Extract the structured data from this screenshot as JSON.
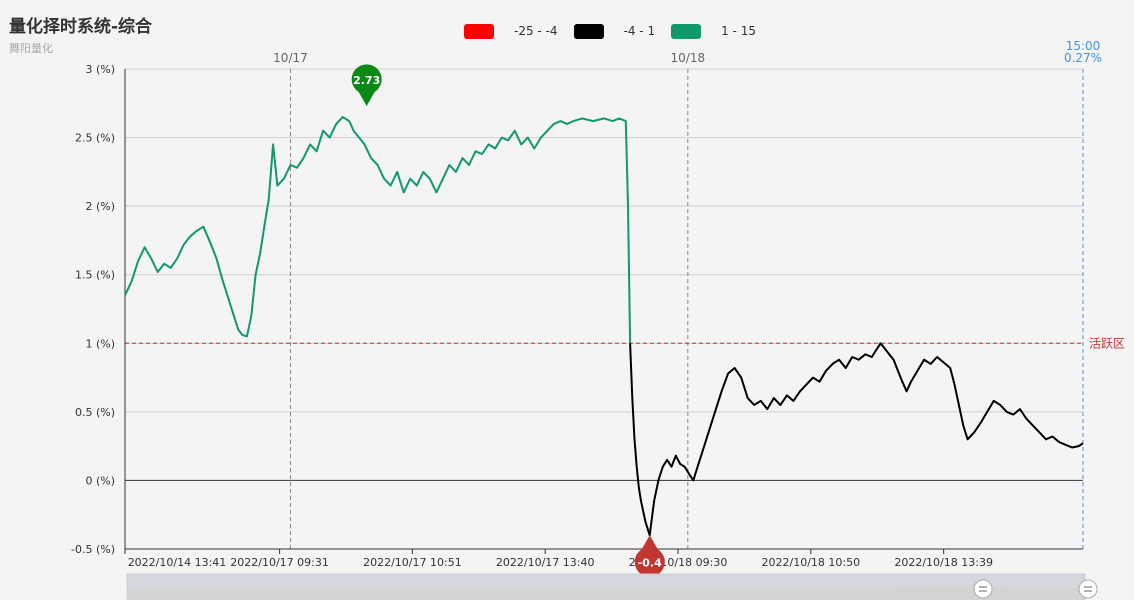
{
  "title": "量化择时系统-综合",
  "subtitle": "舞阳量化",
  "legend": [
    {
      "label": "-25 - -4",
      "color": "#ff0000"
    },
    {
      "label": "-4 - 1",
      "color": "#000000"
    },
    {
      "label": "1 - 15",
      "color": "#0f9a6a"
    }
  ],
  "chart_data": {
    "type": "line",
    "y_unit": "(%)",
    "ylim": [
      -0.5,
      3
    ],
    "y_ticks": [
      "-0.5 (%)",
      "0 (%)",
      "0.5 (%)",
      "1 (%)",
      "1.5 (%)",
      "2 (%)",
      "2.5 (%)",
      "3 (%)"
    ],
    "x_tick_labels": [
      "2022/10/14 13:41",
      "2022/10/17 09:31",
      "2022/10/17 10:51",
      "2022/10/17 13:40",
      "2022/10/18 09:30",
      "2022/10/18 10:50",
      "2022/10/18 13:39"
    ],
    "day_markers": [
      "10/17",
      "10/18"
    ],
    "end_marker": {
      "time": "15:00",
      "value_label": "0.27%"
    },
    "threshold": {
      "value": 1,
      "label": "活跃区"
    },
    "visual_map": [
      {
        "range": [
          -25,
          -4
        ],
        "color": "#ff0000"
      },
      {
        "range": [
          -4,
          1
        ],
        "color": "#000000"
      },
      {
        "range": [
          1,
          15
        ],
        "color": "#0f9a6a"
      }
    ],
    "max_point": {
      "label": "2.73",
      "value": 2.73
    },
    "min_point": {
      "label": "-0.4",
      "value": -0.4
    },
    "series": [
      {
        "points": [
          [
            0,
            1.35
          ],
          [
            6,
            1.45
          ],
          [
            12,
            1.6
          ],
          [
            18,
            1.7
          ],
          [
            24,
            1.62
          ],
          [
            30,
            1.52
          ],
          [
            36,
            1.58
          ],
          [
            42,
            1.55
          ],
          [
            48,
            1.62
          ],
          [
            54,
            1.72
          ],
          [
            60,
            1.78
          ],
          [
            66,
            1.82
          ],
          [
            72,
            1.85
          ],
          [
            78,
            1.74
          ],
          [
            84,
            1.62
          ],
          [
            90,
            1.45
          ],
          [
            96,
            1.3
          ],
          [
            100,
            1.2
          ],
          [
            104,
            1.1
          ],
          [
            108,
            1.06
          ],
          [
            112,
            1.05
          ],
          [
            116,
            1.2
          ],
          [
            120,
            1.5
          ],
          [
            124,
            1.65
          ],
          [
            128,
            1.85
          ],
          [
            132,
            2.05
          ],
          [
            136,
            2.45
          ],
          [
            140,
            2.15
          ],
          [
            146,
            2.2
          ],
          [
            152,
            2.3
          ],
          [
            158,
            2.28
          ],
          [
            164,
            2.35
          ],
          [
            170,
            2.45
          ],
          [
            176,
            2.4
          ],
          [
            182,
            2.55
          ],
          [
            188,
            2.5
          ],
          [
            194,
            2.6
          ],
          [
            200,
            2.65
          ],
          [
            206,
            2.62
          ],
          [
            210,
            2.55
          ],
          [
            215,
            2.5
          ],
          [
            220,
            2.45
          ],
          [
            226,
            2.35
          ],
          [
            232,
            2.3
          ],
          [
            238,
            2.2
          ],
          [
            244,
            2.15
          ],
          [
            250,
            2.25
          ],
          [
            256,
            2.1
          ],
          [
            262,
            2.2
          ],
          [
            268,
            2.15
          ],
          [
            274,
            2.25
          ],
          [
            280,
            2.2
          ],
          [
            286,
            2.1
          ],
          [
            292,
            2.2
          ],
          [
            298,
            2.3
          ],
          [
            304,
            2.25
          ],
          [
            310,
            2.35
          ],
          [
            316,
            2.3
          ],
          [
            322,
            2.4
          ],
          [
            328,
            2.38
          ],
          [
            334,
            2.45
          ],
          [
            340,
            2.42
          ],
          [
            346,
            2.5
          ],
          [
            352,
            2.48
          ],
          [
            358,
            2.55
          ],
          [
            364,
            2.45
          ],
          [
            370,
            2.5
          ],
          [
            376,
            2.42
          ],
          [
            382,
            2.5
          ],
          [
            388,
            2.55
          ],
          [
            394,
            2.6
          ],
          [
            400,
            2.62
          ],
          [
            406,
            2.6
          ],
          [
            412,
            2.62
          ],
          [
            420,
            2.64
          ],
          [
            430,
            2.62
          ],
          [
            440,
            2.64
          ],
          [
            448,
            2.62
          ],
          [
            454,
            2.64
          ],
          [
            460,
            2.62
          ],
          [
            462,
            2.0
          ],
          [
            464,
            1.0
          ]
        ]
      },
      {
        "points": [
          [
            464,
            1.0
          ],
          [
            466,
            0.6
          ],
          [
            468,
            0.3
          ],
          [
            470,
            0.1
          ],
          [
            472,
            -0.05
          ],
          [
            474,
            -0.15
          ],
          [
            478,
            -0.3
          ],
          [
            482,
            -0.4
          ],
          [
            486,
            -0.15
          ],
          [
            490,
            0.0
          ],
          [
            494,
            0.1
          ],
          [
            498,
            0.15
          ],
          [
            502,
            0.1
          ],
          [
            506,
            0.18
          ],
          [
            510,
            0.12
          ],
          [
            514,
            0.1
          ],
          [
            518,
            0.05
          ],
          [
            522,
            0.0
          ],
          [
            526,
            0.1
          ],
          [
            530,
            0.2
          ],
          [
            536,
            0.35
          ],
          [
            542,
            0.5
          ],
          [
            548,
            0.65
          ],
          [
            554,
            0.78
          ],
          [
            560,
            0.82
          ],
          [
            566,
            0.75
          ],
          [
            572,
            0.6
          ],
          [
            578,
            0.55
          ],
          [
            584,
            0.58
          ],
          [
            590,
            0.52
          ],
          [
            596,
            0.6
          ],
          [
            602,
            0.55
          ],
          [
            608,
            0.62
          ],
          [
            614,
            0.58
          ],
          [
            620,
            0.65
          ],
          [
            626,
            0.7
          ],
          [
            632,
            0.75
          ],
          [
            638,
            0.72
          ],
          [
            644,
            0.8
          ],
          [
            650,
            0.85
          ],
          [
            656,
            0.88
          ],
          [
            662,
            0.82
          ],
          [
            668,
            0.9
          ],
          [
            674,
            0.88
          ],
          [
            680,
            0.92
          ],
          [
            686,
            0.9
          ],
          [
            690,
            0.95
          ],
          [
            694,
            1.0
          ],
          [
            698,
            0.96
          ],
          [
            702,
            0.92
          ],
          [
            706,
            0.88
          ],
          [
            710,
            0.8
          ],
          [
            714,
            0.72
          ],
          [
            718,
            0.65
          ],
          [
            722,
            0.72
          ],
          [
            728,
            0.8
          ],
          [
            734,
            0.88
          ],
          [
            740,
            0.85
          ],
          [
            746,
            0.9
          ],
          [
            752,
            0.86
          ],
          [
            758,
            0.82
          ],
          [
            762,
            0.7
          ],
          [
            766,
            0.55
          ],
          [
            770,
            0.4
          ],
          [
            774,
            0.3
          ],
          [
            780,
            0.35
          ],
          [
            786,
            0.42
          ],
          [
            792,
            0.5
          ],
          [
            798,
            0.58
          ],
          [
            804,
            0.55
          ],
          [
            810,
            0.5
          ],
          [
            816,
            0.48
          ],
          [
            822,
            0.52
          ],
          [
            828,
            0.45
          ],
          [
            834,
            0.4
          ],
          [
            840,
            0.35
          ],
          [
            846,
            0.3
          ],
          [
            852,
            0.32
          ],
          [
            858,
            0.28
          ],
          [
            864,
            0.26
          ],
          [
            870,
            0.24
          ],
          [
            876,
            0.25
          ],
          [
            880,
            0.27
          ]
        ]
      }
    ]
  }
}
